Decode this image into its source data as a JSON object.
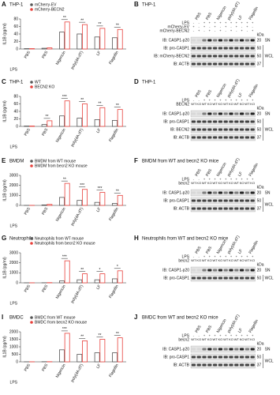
{
  "chart_data": [
    {
      "type": "bar",
      "letter": "A",
      "title": "THP-1",
      "y_label": "IL1B (pg/ml)",
      "x_prefix": "LPS",
      "categories": [
        "PBS",
        "PBS",
        "Nigericin",
        "poly(dA:dT)",
        "LF",
        "Flagellin"
      ],
      "series": [
        {
          "name": "mCherry-EV",
          "color": "#555555",
          "values": [
            1,
            2,
            45,
            40,
            32,
            30
          ]
        },
        {
          "name": "mCherry-BECN2",
          "color": "#e8413c",
          "values": [
            1,
            3,
            72,
            65,
            55,
            52
          ]
        }
      ],
      "significance": [
        null,
        null,
        "**",
        "**",
        "**",
        "**"
      ],
      "ylim": [
        0,
        80
      ],
      "yticks": [
        0,
        20,
        40,
        60,
        80
      ]
    },
    {
      "type": "bar",
      "letter": "C",
      "title": "THP-1",
      "y_label": "IL1B (pg/ml)",
      "x_prefix": "LPS",
      "categories": [
        "PBS",
        "PBS",
        "Nigericin",
        "poly(dA:dT)",
        "LF",
        "Flagellin"
      ],
      "series": [
        {
          "name": "WT",
          "color": "#555555",
          "values": [
            1,
            5,
            28,
            22,
            18,
            16
          ]
        },
        {
          "name": "BECN2 KO",
          "color": "#e8413c",
          "values": [
            1,
            15,
            68,
            60,
            50,
            45
          ]
        }
      ],
      "significance": [
        null,
        "**",
        "***",
        "**",
        "**",
        "**"
      ],
      "ylim": [
        0,
        80
      ],
      "yticks": [
        0,
        20,
        40,
        60,
        80
      ]
    },
    {
      "type": "bar",
      "letter": "E",
      "title": "BMDM",
      "y_label": "IL1B (pg/ml)",
      "x_prefix": "LPS",
      "categories": [
        "PBS",
        "PBS",
        "Nigericin",
        "poly(dA:dT)",
        "LF",
        "Flagellin"
      ],
      "series": [
        {
          "name": "BMDM from WT mouse",
          "color": "#555555",
          "values": [
            5,
            50,
            800,
            500,
            300,
            200
          ]
        },
        {
          "name": "BMDM from becn2 KO mouse",
          "color": "#e8413c",
          "values": [
            5,
            100,
            2200,
            1600,
            1300,
            1000
          ]
        }
      ],
      "significance": [
        null,
        null,
        "**",
        "***",
        "***",
        "**"
      ],
      "ylim": [
        0,
        3000
      ],
      "yticks": [
        0,
        1000,
        2000,
        3000
      ]
    },
    {
      "type": "bar",
      "letter": "G",
      "title": "Neutrophils",
      "y_label": "IL1B (pg/ml)",
      "x_prefix": "LPS",
      "categories": [
        "PBS",
        "PBS",
        "Nigericin",
        "poly(dA:dT)",
        "LF",
        "Flagellin"
      ],
      "series": [
        {
          "name": "Neutrophils from WT mouse",
          "color": "#555555",
          "values": [
            5,
            10,
            200,
            300,
            300,
            400
          ]
        },
        {
          "name": "Neutrophils from becn2 KO mouse",
          "color": "#e8413c",
          "values": [
            5,
            20,
            2200,
            900,
            900,
            1200
          ]
        }
      ],
      "significance": [
        null,
        null,
        "***",
        "**",
        "*",
        "*"
      ],
      "ylim": [
        0,
        3000
      ],
      "yticks": [
        0,
        1000,
        2000,
        3000
      ]
    },
    {
      "type": "bar",
      "letter": "I",
      "title": "BMDC",
      "y_label": "IL1B (pg/ml)",
      "x_prefix": "LPS",
      "categories": [
        "PBS",
        "PBS",
        "Nigericin",
        "poly(dA:dT)",
        "LF",
        "Flagellin"
      ],
      "series": [
        {
          "name": "BMDC from WT mouse",
          "color": "#555555",
          "values": [
            5,
            10,
            800,
            500,
            600,
            600
          ]
        },
        {
          "name": "BMDC from becn2 KO mouse",
          "color": "#e8413c",
          "values": [
            5,
            10,
            1900,
            1400,
            1500,
            1600
          ]
        }
      ],
      "significance": [
        null,
        null,
        "***",
        "**",
        "**",
        "**"
      ],
      "ylim": [
        0,
        2000
      ],
      "yticks": [
        0,
        500,
        1000,
        1500,
        2000
      ]
    }
  ],
  "blots": [
    {
      "letter": "B",
      "title": "THP-1",
      "lanes": [
        "PBS",
        "PBS",
        "Nigericin",
        "poly(dA:dT)",
        "LF",
        "Flagellin"
      ],
      "conditions": [
        {
          "label": "LPS",
          "signs": [
            "-",
            "-",
            "+",
            "+",
            "+",
            "+",
            "+",
            "+",
            "+",
            "+",
            "+",
            "+"
          ]
        },
        {
          "label": "mCherry-EV",
          "signs": [
            "+",
            "-",
            "+",
            "-",
            "+",
            "-",
            "+",
            "-",
            "+",
            "-",
            "+",
            "-"
          ]
        },
        {
          "label": "mCherry-BECN2",
          "signs": [
            "-",
            "+",
            "-",
            "+",
            "-",
            "+",
            "-",
            "+",
            "-",
            "+",
            "-",
            "+"
          ]
        }
      ],
      "rows": [
        {
          "label": "IB: CASP1-p20",
          "marker": "20"
        },
        {
          "label": "IB: pro-CASP1",
          "marker": "50"
        },
        {
          "label": "IB: mCherry-BECN2",
          "marker": "50"
        },
        {
          "label": "IB: ACTB",
          "marker": "37"
        }
      ],
      "kda": "kDa",
      "sn": "SN",
      "wcl": "WCL"
    },
    {
      "letter": "D",
      "title": "THP-1",
      "lanes": [
        "PBS",
        "PBS",
        "Nigericin",
        "poly(dA:dT)",
        "LF",
        "Flagellin"
      ],
      "conditions": [
        {
          "label": "LPS",
          "signs": [
            "-",
            "-",
            "+",
            "+",
            "+",
            "+",
            "+",
            "+",
            "+",
            "+",
            "+",
            "+"
          ]
        },
        {
          "label": "BECN2",
          "signs": [
            "WT",
            "KO",
            "WT",
            "KO",
            "WT",
            "KO",
            "WT",
            "KO",
            "WT",
            "KO",
            "WT",
            "KO"
          ]
        }
      ],
      "rows": [
        {
          "label": "IB: CASP1-p20",
          "marker": "20"
        },
        {
          "label": "IB: pro-CASP1",
          "marker": "50"
        },
        {
          "label": "IB: BECN2",
          "marker": "50"
        },
        {
          "label": "IB: ACTB",
          "marker": "37"
        }
      ],
      "kda": "kDa",
      "sn": "SN",
      "wcl": "WCL"
    },
    {
      "letter": "F",
      "title": "BMDM from WT and becn2 KO mice",
      "lanes": [
        "PBS",
        "PBS",
        "Nigericin",
        "poly(dA:dT)",
        "LF",
        "Flagellin"
      ],
      "conditions": [
        {
          "label": "LPS",
          "signs": [
            "-",
            "-",
            "+",
            "+",
            "+",
            "+",
            "+",
            "+",
            "+",
            "+",
            "+",
            "+"
          ]
        },
        {
          "label": "becn2",
          "signs": [
            "WT",
            "KO",
            "WT",
            "KO",
            "WT",
            "KO",
            "WT",
            "KO",
            "WT",
            "KO",
            "WT",
            "KO"
          ]
        }
      ],
      "rows": [
        {
          "label": "IB: CASP1-p20",
          "marker": "20"
        },
        {
          "label": "IB: pro-CASP1",
          "marker": "50"
        },
        {
          "label": "IB: ACTB",
          "marker": "37"
        }
      ],
      "kda": "kDa",
      "sn": "SN",
      "wcl": "WCL"
    },
    {
      "letter": "H",
      "title": "Neutrophils from WT and becn2 KO mice",
      "lanes": [
        "PBS",
        "PBS",
        "Nigericin",
        "poly(dA:dT)",
        "LF",
        "Flagellin"
      ],
      "conditions": [
        {
          "label": "LPS",
          "signs": [
            "-",
            "-",
            "+",
            "+",
            "+",
            "+",
            "+",
            "+",
            "+",
            "+",
            "+",
            "+"
          ]
        },
        {
          "label": "becn2",
          "signs": [
            "WT",
            "KO",
            "WT",
            "KO",
            "WT",
            "KO",
            "WT",
            "KO",
            "WT",
            "KO",
            "WT",
            "KO"
          ]
        }
      ],
      "rows": [
        {
          "label": "IB: CASP1-p20",
          "marker": "20"
        },
        {
          "label": "IB: pro-CASP1",
          "marker": "50"
        }
      ],
      "kda": "kDa",
      "sn": "SN",
      "wcl": "WCL"
    },
    {
      "letter": "J",
      "title": "BMDC from WT and becn2 KO mice",
      "lanes": [
        "PBS",
        "PBS",
        "Nigericin",
        "poly(dA:dT)",
        "LF",
        "Flagellin"
      ],
      "conditions": [
        {
          "label": "LPS",
          "signs": [
            "-",
            "-",
            "+",
            "+",
            "+",
            "+",
            "+",
            "+",
            "+",
            "+",
            "+",
            "+"
          ]
        },
        {
          "label": "becn2",
          "signs": [
            "WT",
            "KO",
            "WT",
            "KO",
            "WT",
            "KO",
            "WT",
            "KO",
            "WT",
            "KO",
            "WT",
            "KO"
          ]
        }
      ],
      "rows": [
        {
          "label": "IB: CASP1-p20",
          "marker": "20"
        },
        {
          "label": "IB: pro-CASP1",
          "marker": "50"
        },
        {
          "label": "IB: ACTB",
          "marker": "37"
        }
      ],
      "kda": "kDa",
      "sn": "SN",
      "wcl": "WCL"
    }
  ]
}
